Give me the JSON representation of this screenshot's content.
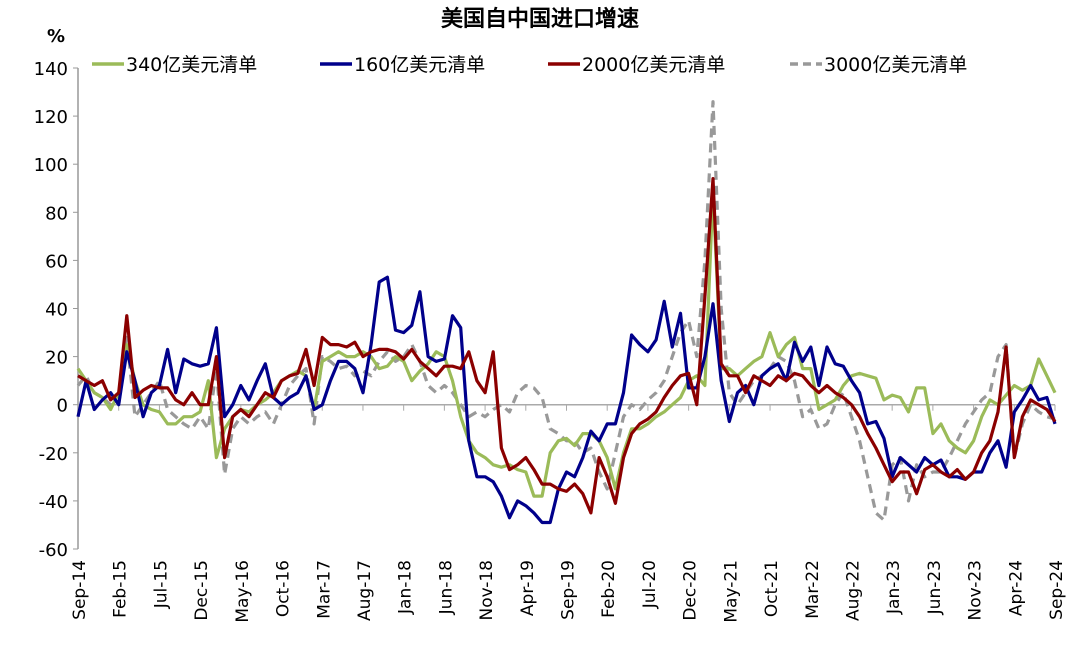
{
  "chart_data": {
    "type": "line",
    "title": "美国自中国进口增速",
    "ylabel": "%",
    "ylim": [
      -60,
      140
    ],
    "yticks": [
      -60,
      -40,
      -20,
      0,
      20,
      40,
      60,
      80,
      100,
      120,
      140
    ],
    "xlim": [
      "Sep-14",
      "Sep-24"
    ],
    "frequency": "monthly",
    "xtick_labels": [
      "Sep-14",
      "Feb-15",
      "Jul-15",
      "Dec-15",
      "May-16",
      "Oct-16",
      "Mar-17",
      "Aug-17",
      "Jan-18",
      "Jun-18",
      "Nov-18",
      "Apr-19",
      "Sep-19",
      "Feb-20",
      "Jul-20",
      "Dec-20",
      "May-21",
      "Oct-21",
      "Mar-22",
      "Aug-22",
      "Jan-23",
      "Jun-23",
      "Nov-23",
      "Apr-24",
      "Sep-24"
    ],
    "grid": false,
    "legend": "top",
    "series": [
      {
        "name": "340亿美元清单",
        "color": "#9bbb59",
        "dash": false,
        "values": [
          15,
          10,
          5,
          3,
          -2,
          5,
          25,
          10,
          0,
          -2,
          -3,
          -8,
          -8,
          -5,
          -5,
          -3,
          10,
          -22,
          -10,
          -5,
          -2,
          -3,
          0,
          2,
          5,
          10,
          12,
          14,
          12,
          -2,
          18,
          20,
          22,
          20,
          20,
          22,
          20,
          15,
          16,
          20,
          18,
          10,
          14,
          17,
          22,
          20,
          10,
          -5,
          -15,
          -20,
          -22,
          -25,
          -26,
          -25,
          -27,
          -28,
          -38,
          -38,
          -20,
          -15,
          -14,
          -17,
          -12,
          -12,
          -15,
          -22,
          -35,
          -20,
          -10,
          -10,
          -8,
          -5,
          -3,
          0,
          3,
          10,
          12,
          8,
          88,
          15,
          15,
          12,
          15,
          18,
          20,
          30,
          20,
          25,
          28,
          15,
          15,
          -2,
          0,
          2,
          8,
          12,
          13,
          12,
          11,
          2,
          4,
          3,
          -3,
          7,
          7,
          -12,
          -8,
          -15,
          -18,
          -20,
          -15,
          -5,
          2,
          0,
          4,
          8,
          6,
          8,
          19,
          12,
          5
        ]
      },
      {
        "name": "160亿美元清单",
        "color": "#00008b",
        "dash": false,
        "values": [
          -5,
          10,
          -2,
          2,
          5,
          0,
          22,
          10,
          -5,
          5,
          8,
          23,
          5,
          19,
          17,
          16,
          17,
          32,
          -5,
          0,
          8,
          2,
          10,
          17,
          3,
          0,
          3,
          5,
          12,
          -2,
          0,
          10,
          18,
          18,
          15,
          5,
          25,
          51,
          53,
          31,
          30,
          33,
          47,
          20,
          18,
          19,
          37,
          32,
          -15,
          -30,
          -30,
          -32,
          -38,
          -47,
          -40,
          -42,
          -45,
          -49,
          -49,
          -35,
          -28,
          -30,
          -22,
          -11,
          -15,
          -8,
          -8,
          5,
          29,
          25,
          22,
          27,
          43,
          24,
          38,
          7,
          7,
          20,
          42,
          10,
          -7,
          5,
          8,
          0,
          12,
          15,
          17,
          10,
          26,
          18,
          24,
          8,
          24,
          17,
          16,
          10,
          5,
          -8,
          -7,
          -14,
          -30,
          -22,
          -25,
          -28,
          -22,
          -25,
          -23,
          -30,
          -30,
          -31,
          -28,
          -28,
          -20,
          -15,
          -26,
          -3,
          2,
          8,
          2,
          3,
          -8
        ]
      },
      {
        "name": "2000亿美元清单",
        "color": "#8b0000",
        "dash": false,
        "values": [
          12,
          10,
          8,
          10,
          2,
          5,
          37,
          3,
          6,
          8,
          7,
          7,
          2,
          0,
          5,
          0,
          0,
          20,
          -22,
          -5,
          -2,
          -5,
          0,
          5,
          3,
          10,
          12,
          13,
          23,
          8,
          28,
          25,
          25,
          24,
          26,
          20,
          22,
          23,
          23,
          22,
          19,
          23,
          18,
          15,
          12,
          16,
          16,
          15,
          22,
          10,
          5,
          22,
          -18,
          -27,
          -25,
          -22,
          -27,
          -33,
          -33,
          -35,
          -36,
          -33,
          -37,
          -45,
          -22,
          -30,
          -41,
          -22,
          -12,
          -8,
          -6,
          -3,
          3,
          8,
          12,
          13,
          0,
          45,
          94,
          17,
          12,
          12,
          5,
          12,
          10,
          8,
          12,
          10,
          13,
          12,
          8,
          5,
          8,
          5,
          3,
          0,
          -5,
          -12,
          -18,
          -25,
          -32,
          -28,
          -28,
          -37,
          -27,
          -25,
          -28,
          -30,
          -27,
          -31,
          -28,
          -20,
          -15,
          -3,
          24,
          -22,
          -5,
          2,
          0,
          -2,
          -7
        ]
      },
      {
        "name": "3000亿美元清单",
        "color": "#999999",
        "dash": true,
        "values": [
          8,
          12,
          5,
          3,
          0,
          0,
          28,
          -5,
          0,
          5,
          10,
          -2,
          -5,
          -8,
          -10,
          -5,
          -10,
          15,
          -29,
          -10,
          -5,
          -8,
          -5,
          -3,
          -8,
          0,
          8,
          12,
          15,
          -8,
          20,
          18,
          15,
          16,
          12,
          14,
          12,
          18,
          22,
          18,
          20,
          25,
          18,
          8,
          5,
          8,
          5,
          0,
          -5,
          -3,
          -5,
          -2,
          0,
          -3,
          5,
          8,
          7,
          3,
          -10,
          -12,
          -15,
          -15,
          -20,
          -18,
          -28,
          -35,
          -20,
          -5,
          0,
          -2,
          2,
          5,
          10,
          20,
          30,
          35,
          20,
          60,
          126,
          40,
          5,
          0,
          5,
          10,
          12,
          15,
          20,
          18,
          10,
          -5,
          -2,
          -10,
          -8,
          0,
          5,
          -5,
          -15,
          -30,
          -45,
          -48,
          -25,
          -22,
          -40,
          -25,
          -30,
          -28,
          -28,
          -22,
          -15,
          -8,
          -3,
          2,
          5,
          20,
          25,
          -22,
          -8,
          0,
          -3,
          -5,
          -6
        ]
      }
    ]
  }
}
